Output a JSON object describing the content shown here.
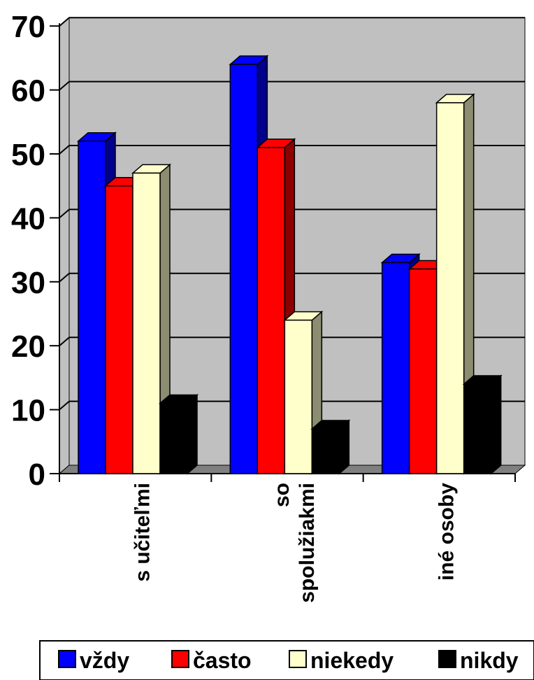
{
  "chart_data": {
    "type": "bar",
    "categories": [
      "s učiteľmi",
      "so spolužiakmi",
      "iné osoby"
    ],
    "category_lines": [
      [
        "s učiteľmi"
      ],
      [
        "so",
        "spolužiakmi"
      ],
      [
        "iné osoby"
      ]
    ],
    "series": [
      {
        "name": "vždy",
        "values": [
          52,
          64,
          33
        ],
        "color": "#0000ff"
      },
      {
        "name": "často",
        "values": [
          45,
          51,
          32
        ],
        "color": "#ff0000"
      },
      {
        "name": "niekedy",
        "values": [
          47,
          24,
          58
        ],
        "color": "#ffffcc"
      },
      {
        "name": "nikdy",
        "values": [
          11,
          7,
          14
        ],
        "color": "#000000"
      }
    ],
    "yticks": [
      0,
      10,
      20,
      30,
      40,
      50,
      60,
      70
    ],
    "ylim": [
      0,
      70
    ],
    "title": "",
    "xlabel": "",
    "ylabel": "",
    "grid": true,
    "legend_position": "bottom",
    "three_d": true,
    "colors": {
      "wall": "#c0c0c0",
      "floor": "#808080",
      "grid": "#000000"
    }
  }
}
